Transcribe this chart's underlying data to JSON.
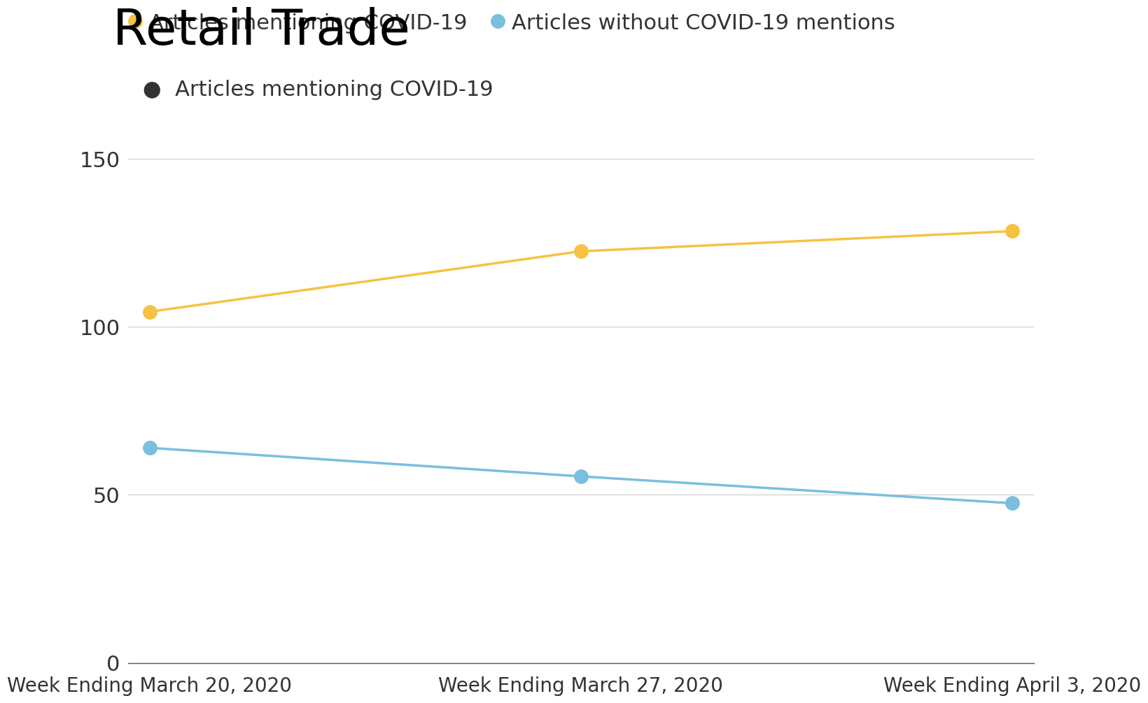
{
  "title": "Retail Trade",
  "legend_labels": [
    "Articles mentioning COVID-19",
    "Articles without COVID-19 mentions"
  ],
  "x_labels": [
    "Week Ending March 20, 2020",
    "Week Ending March 27, 2020",
    "Week Ending April 3, 2020"
  ],
  "x_values": [
    0,
    1,
    2
  ],
  "covid_series": [
    104.5,
    122.5,
    128.5
  ],
  "no_covid_series": [
    64.0,
    55.5,
    47.5
  ],
  "covid_color": "#F5C242",
  "no_covid_color": "#7ABFDE",
  "ylim": [
    0,
    160
  ],
  "yticks": [
    0,
    50,
    100,
    150
  ],
  "background_color": "#ffffff",
  "title_fontsize": 52,
  "legend_fontsize": 22,
  "tick_fontsize": 22,
  "xtick_fontsize": 20,
  "line_width": 2.5,
  "marker_size": 14
}
